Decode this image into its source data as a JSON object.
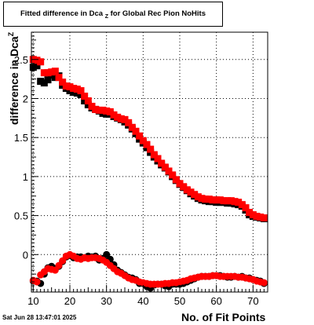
{
  "chart_data": {
    "type": "scatter",
    "title_main": "Fitted difference in Dca",
    "title_sub": "Z",
    "title_rest": "for Global Rec Pion NoHits",
    "xlabel": "No. of Fit Points",
    "ylabel_main": "difference in Dca",
    "ylabel_sub": "Z",
    "xlim": [
      9.5,
      74
    ],
    "ylim": [
      -0.48,
      2.85
    ],
    "xticks": [
      10,
      20,
      30,
      40,
      50,
      60,
      70
    ],
    "yticks": [
      0,
      0.5,
      1,
      1.5,
      2,
      2.5
    ],
    "ytick_labels": [
      "0",
      "0.5",
      "1",
      "1.5",
      "2",
      "2.5"
    ],
    "grid": true,
    "footer": "Sat Jun 28 13:47:01 2025",
    "colors": {
      "black_series": "#000000",
      "red_series": "#ff0000"
    },
    "series": [
      {
        "color": "#000000",
        "marker": "square",
        "group": "upper",
        "x": [
          10,
          11,
          12,
          13,
          14,
          15,
          16,
          17,
          18,
          19,
          20,
          21,
          22,
          23,
          24,
          25,
          26,
          27,
          28,
          29,
          30,
          31,
          32,
          33,
          34,
          35,
          36,
          37,
          38,
          39,
          40,
          41,
          42,
          43,
          44,
          45,
          46,
          47,
          48,
          49,
          50,
          51,
          52,
          53,
          54,
          55,
          56,
          57,
          58,
          59,
          60,
          61,
          62,
          63,
          64,
          65,
          66,
          67,
          68,
          69,
          70,
          71,
          72,
          73
        ],
        "y": [
          2.4,
          2.42,
          2.22,
          2.2,
          2.24,
          2.3,
          2.27,
          2.29,
          2.17,
          2.13,
          2.1,
          2.08,
          2.07,
          2.05,
          1.97,
          1.92,
          1.88,
          1.86,
          1.84,
          1.81,
          1.8,
          1.8,
          1.77,
          1.75,
          1.73,
          1.7,
          1.66,
          1.61,
          1.55,
          1.48,
          1.43,
          1.37,
          1.31,
          1.25,
          1.2,
          1.15,
          1.11,
          1.06,
          1.0,
          0.95,
          0.9,
          0.86,
          0.82,
          0.78,
          0.75,
          0.72,
          0.7,
          0.69,
          0.68,
          0.68,
          0.67,
          0.67,
          0.67,
          0.66,
          0.66,
          0.65,
          0.64,
          0.62,
          0.57,
          0.51,
          0.49,
          0.48,
          0.47,
          0.46
        ]
      },
      {
        "color": "#ff0000",
        "marker": "square",
        "group": "upper",
        "x": [
          10,
          11,
          12,
          13,
          14,
          15,
          16,
          17,
          18,
          19,
          20,
          21,
          22,
          23,
          24,
          25,
          26,
          27,
          28,
          29,
          30,
          31,
          32,
          33,
          34,
          35,
          36,
          37,
          38,
          39,
          40,
          41,
          42,
          43,
          44,
          45,
          46,
          47,
          48,
          49,
          50,
          51,
          52,
          53,
          54,
          55,
          56,
          57,
          58,
          59,
          60,
          61,
          62,
          63,
          64,
          65,
          66,
          67,
          68,
          69,
          70,
          71,
          72,
          73
        ],
        "y": [
          2.5,
          2.49,
          2.47,
          2.33,
          2.33,
          2.34,
          2.35,
          2.27,
          2.21,
          2.16,
          2.15,
          2.13,
          2.12,
          2.1,
          2.03,
          1.97,
          1.9,
          1.86,
          1.85,
          1.85,
          1.84,
          1.83,
          1.79,
          1.76,
          1.74,
          1.73,
          1.69,
          1.63,
          1.58,
          1.52,
          1.46,
          1.41,
          1.35,
          1.28,
          1.23,
          1.17,
          1.12,
          1.07,
          1.02,
          0.96,
          0.91,
          0.87,
          0.83,
          0.8,
          0.77,
          0.74,
          0.72,
          0.71,
          0.71,
          0.7,
          0.7,
          0.7,
          0.69,
          0.69,
          0.69,
          0.68,
          0.67,
          0.64,
          0.6,
          0.54,
          0.51,
          0.49,
          0.48,
          0.47
        ]
      },
      {
        "color": "#000000",
        "marker": "circle",
        "group": "lower",
        "x": [
          10,
          11,
          12,
          13,
          14,
          15,
          16,
          17,
          18,
          19,
          20,
          21,
          22,
          23,
          24,
          25,
          26,
          27,
          28,
          29,
          30,
          31,
          32,
          33,
          34,
          35,
          36,
          37,
          38,
          39,
          40,
          41,
          42,
          43,
          44,
          45,
          46,
          47,
          48,
          49,
          50,
          51,
          52,
          53,
          54,
          55,
          56,
          57,
          58,
          59,
          60,
          61,
          62,
          63,
          64,
          65,
          66,
          67,
          68,
          69,
          70,
          71,
          72,
          73
        ],
        "y": [
          -0.34,
          -0.34,
          -0.37,
          -0.25,
          -0.17,
          -0.15,
          -0.18,
          -0.15,
          -0.09,
          -0.03,
          -0.01,
          -0.04,
          -0.03,
          -0.03,
          -0.04,
          -0.02,
          -0.03,
          -0.02,
          -0.07,
          -0.05,
          0.0,
          -0.06,
          -0.13,
          -0.2,
          -0.23,
          -0.26,
          -0.29,
          -0.3,
          -0.32,
          -0.37,
          -0.37,
          -0.41,
          -0.43,
          -0.39,
          -0.38,
          -0.38,
          -0.4,
          -0.41,
          -0.38,
          -0.38,
          -0.38,
          -0.37,
          -0.35,
          -0.33,
          -0.31,
          -0.29,
          -0.28,
          -0.28,
          -0.28,
          -0.27,
          -0.27,
          -0.27,
          -0.28,
          -0.29,
          -0.29,
          -0.28,
          -0.29,
          -0.28,
          -0.3,
          -0.3,
          -0.32,
          -0.33,
          -0.34,
          -0.37
        ]
      },
      {
        "color": "#ff0000",
        "marker": "circle",
        "group": "lower",
        "x": [
          10,
          11,
          12,
          13,
          14,
          15,
          16,
          17,
          18,
          19,
          20,
          21,
          22,
          23,
          24,
          25,
          26,
          27,
          28,
          29,
          30,
          31,
          32,
          33,
          34,
          35,
          36,
          37,
          38,
          39,
          40,
          41,
          42,
          43,
          44,
          45,
          46,
          47,
          48,
          49,
          50,
          51,
          52,
          53,
          54,
          55,
          56,
          57,
          58,
          59,
          60,
          61,
          62,
          63,
          64,
          65,
          66,
          67,
          68,
          69,
          70,
          71,
          72,
          73
        ],
        "y": [
          -0.33,
          -0.35,
          -0.26,
          -0.22,
          -0.18,
          -0.19,
          -0.2,
          -0.14,
          -0.08,
          -0.02,
          0.0,
          -0.02,
          -0.05,
          -0.06,
          -0.04,
          -0.05,
          -0.04,
          -0.04,
          -0.05,
          -0.07,
          -0.1,
          -0.14,
          -0.18,
          -0.22,
          -0.24,
          -0.27,
          -0.3,
          -0.32,
          -0.33,
          -0.35,
          -0.36,
          -0.37,
          -0.38,
          -0.38,
          -0.38,
          -0.38,
          -0.37,
          -0.37,
          -0.36,
          -0.36,
          -0.35,
          -0.34,
          -0.33,
          -0.31,
          -0.3,
          -0.29,
          -0.28,
          -0.28,
          -0.28,
          -0.27,
          -0.27,
          -0.28,
          -0.28,
          -0.28,
          -0.28,
          -0.28,
          -0.29,
          -0.29,
          -0.3,
          -0.31,
          -0.32,
          -0.34,
          -0.35,
          -0.36
        ]
      }
    ]
  }
}
